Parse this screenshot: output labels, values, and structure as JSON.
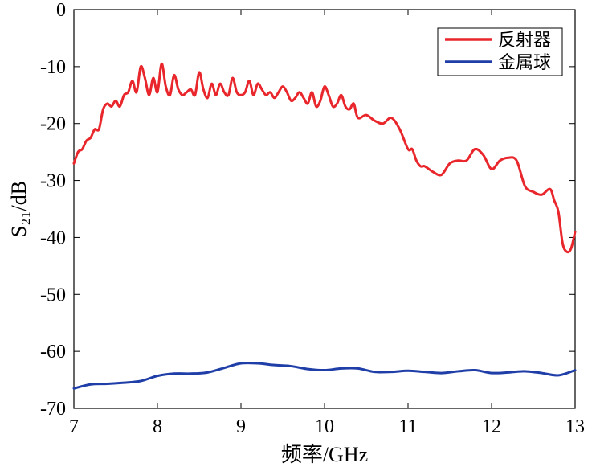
{
  "chart_data": {
    "type": "line",
    "title": "",
    "xlabel": "频率/GHz",
    "ylabel": "S₂₁/dB",
    "xlim": [
      7,
      13
    ],
    "ylim": [
      -70,
      0
    ],
    "xticks": [
      7,
      8,
      9,
      10,
      11,
      12,
      13
    ],
    "yticks": [
      0,
      -10,
      -20,
      -30,
      -40,
      -50,
      -60,
      -70
    ],
    "xtick_labels": [
      "7",
      "8",
      "9",
      "10",
      "11",
      "12",
      "13"
    ],
    "ytick_labels": [
      "0",
      "-10",
      "-20",
      "-30",
      "-40",
      "-50",
      "-60",
      "-70"
    ],
    "grid": false,
    "legend_position": "top-right",
    "series": [
      {
        "name": "反射器",
        "color": "#e8262b",
        "x": [
          7.0,
          7.05,
          7.1,
          7.15,
          7.2,
          7.25,
          7.3,
          7.35,
          7.4,
          7.45,
          7.5,
          7.55,
          7.6,
          7.65,
          7.7,
          7.75,
          7.8,
          7.85,
          7.9,
          7.95,
          8.0,
          8.05,
          8.1,
          8.15,
          8.2,
          8.25,
          8.3,
          8.35,
          8.4,
          8.45,
          8.5,
          8.55,
          8.6,
          8.65,
          8.7,
          8.75,
          8.8,
          8.85,
          8.9,
          8.95,
          9.0,
          9.05,
          9.1,
          9.15,
          9.2,
          9.25,
          9.3,
          9.35,
          9.4,
          9.45,
          9.5,
          9.55,
          9.6,
          9.65,
          9.7,
          9.75,
          9.8,
          9.85,
          9.9,
          9.95,
          10.0,
          10.05,
          10.1,
          10.15,
          10.2,
          10.25,
          10.3,
          10.35,
          10.4,
          10.5,
          10.6,
          10.7,
          10.8,
          10.9,
          11.0,
          11.05,
          11.1,
          11.15,
          11.2,
          11.3,
          11.4,
          11.5,
          11.6,
          11.7,
          11.8,
          11.9,
          12.0,
          12.1,
          12.2,
          12.3,
          12.4,
          12.5,
          12.6,
          12.7,
          12.75,
          12.8,
          12.85,
          12.9,
          12.95,
          13.0
        ],
        "values": [
          -27,
          -25,
          -24.5,
          -23,
          -22.5,
          -21,
          -21,
          -17.5,
          -16.5,
          -17,
          -16,
          -17,
          -15,
          -14.5,
          -12.5,
          -14.5,
          -10,
          -12,
          -15,
          -12,
          -14.5,
          -9.5,
          -13.5,
          -15,
          -11.5,
          -14,
          -15,
          -14.5,
          -14,
          -15,
          -11,
          -14,
          -15.5,
          -13,
          -15,
          -13,
          -14.5,
          -15,
          -12,
          -14.5,
          -15,
          -14.5,
          -12.5,
          -15,
          -13,
          -14,
          -15,
          -14.5,
          -15.5,
          -14.5,
          -13.5,
          -14.5,
          -16,
          -15.5,
          -14.5,
          -15.5,
          -16.5,
          -14.5,
          -17,
          -16,
          -13.5,
          -15,
          -17,
          -16.5,
          -15,
          -17,
          -17.5,
          -16.5,
          -19,
          -18.5,
          -19.5,
          -20,
          -19,
          -21,
          -24.5,
          -24.5,
          -26.5,
          -27.5,
          -27.5,
          -28.5,
          -29,
          -27,
          -26.5,
          -26.5,
          -24.5,
          -25.5,
          -28,
          -26.5,
          -26,
          -26.5,
          -31,
          -32,
          -32.5,
          -31.5,
          -33.5,
          -35.5,
          -41,
          -42.5,
          -42,
          -39
        ]
      },
      {
        "name": "金属球",
        "color": "#1f3ea8",
        "x": [
          7.0,
          7.2,
          7.4,
          7.6,
          7.8,
          8.0,
          8.2,
          8.4,
          8.6,
          8.8,
          9.0,
          9.2,
          9.4,
          9.6,
          9.8,
          10.0,
          10.2,
          10.4,
          10.6,
          10.8,
          11.0,
          11.2,
          11.4,
          11.6,
          11.8,
          12.0,
          12.2,
          12.4,
          12.6,
          12.8,
          13.0
        ],
        "values": [
          -66.5,
          -65.8,
          -65.7,
          -65.5,
          -65.2,
          -64.3,
          -63.9,
          -63.9,
          -63.7,
          -62.9,
          -62.1,
          -62.1,
          -62.4,
          -62.6,
          -63.1,
          -63.3,
          -63.0,
          -63.0,
          -63.6,
          -63.6,
          -63.4,
          -63.6,
          -63.8,
          -63.5,
          -63.3,
          -63.8,
          -63.7,
          -63.5,
          -63.8,
          -64.2,
          -63.3
        ]
      }
    ]
  }
}
